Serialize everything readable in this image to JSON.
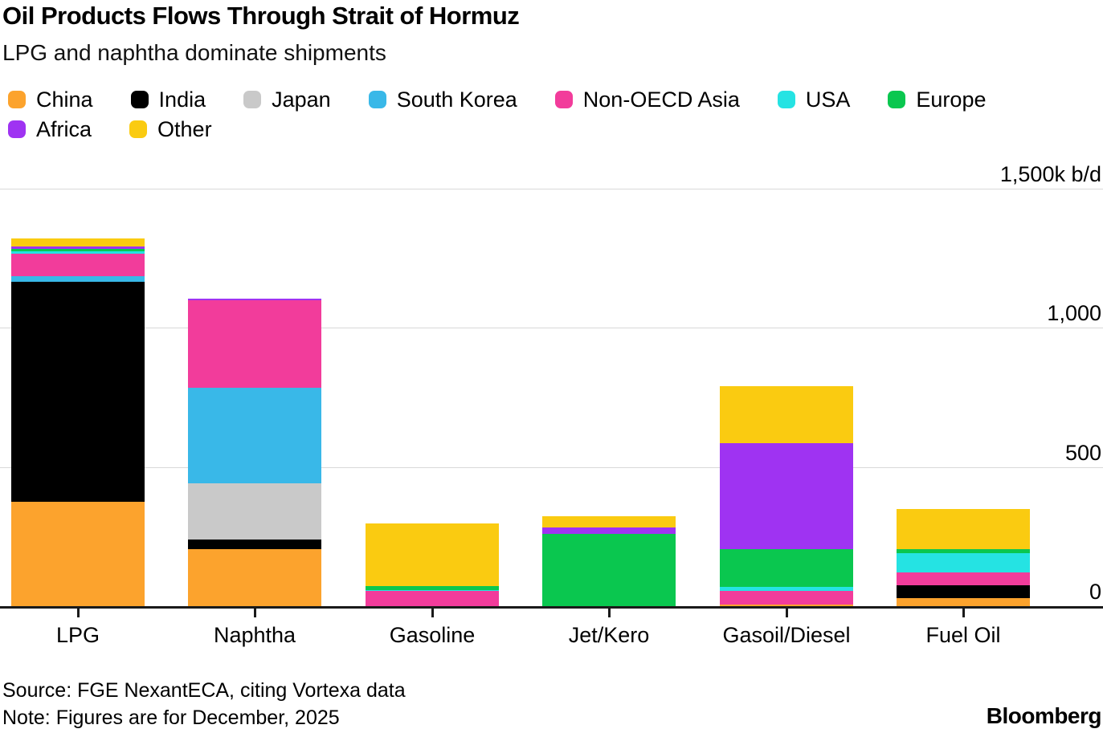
{
  "header": {
    "title": "Oil Products Flows Through Strait of Hormuz",
    "subtitle": "LPG and naphtha dominate shipments"
  },
  "y_axis": {
    "unit_label": "1,500k b/d",
    "labels": [
      {
        "text": "1,500k b/d",
        "value": 1500
      },
      {
        "text": "1,000",
        "value": 1000
      },
      {
        "text": "500",
        "value": 500
      },
      {
        "text": "0",
        "value": 0
      }
    ]
  },
  "footer": {
    "source": "Source: FGE NexantECA, citing Vortexa data",
    "note": "Note: Figures are for December, 2025",
    "brand": "Bloomberg"
  },
  "chart_data": {
    "type": "bar",
    "stacked": true,
    "title": "Oil Products Flows Through Strait of Hormuz",
    "subtitle": "LPG and naphtha dominate shipments",
    "unit": "k b/d",
    "ylim": [
      0,
      1500
    ],
    "grid": "horizontal",
    "legend_position": "top",
    "categories": [
      "LPG",
      "Naphtha",
      "Gasoline",
      "Jet/Kero",
      "Gasoil/Diesel",
      "Fuel Oil"
    ],
    "series": [
      {
        "name": "China",
        "color": "#FCA32D",
        "values": [
          375,
          205,
          0,
          0,
          5,
          30
        ]
      },
      {
        "name": "India",
        "color": "#000000",
        "values": [
          790,
          35,
          0,
          0,
          0,
          45
        ]
      },
      {
        "name": "Japan",
        "color": "#C9C9C9",
        "values": [
          0,
          200,
          0,
          0,
          0,
          0
        ]
      },
      {
        "name": "South Korea",
        "color": "#39B8E8",
        "values": [
          22,
          345,
          0,
          0,
          0,
          0
        ]
      },
      {
        "name": "Non-OECD Asia",
        "color": "#F23C9B",
        "values": [
          80,
          315,
          55,
          0,
          50,
          45
        ]
      },
      {
        "name": "USA",
        "color": "#25E3E3",
        "values": [
          8,
          0,
          4,
          0,
          15,
          70
        ]
      },
      {
        "name": "Europe",
        "color": "#0AC74F",
        "values": [
          8,
          0,
          12,
          260,
          135,
          15
        ]
      },
      {
        "name": "Africa",
        "color": "#9F33F2",
        "values": [
          8,
          6,
          0,
          23,
          380,
          0
        ]
      },
      {
        "name": "Other",
        "color": "#FACB11",
        "values": [
          30,
          0,
          225,
          40,
          205,
          145
        ]
      }
    ],
    "totals": [
      1321,
      1106,
      296,
      323,
      790,
      350
    ]
  }
}
